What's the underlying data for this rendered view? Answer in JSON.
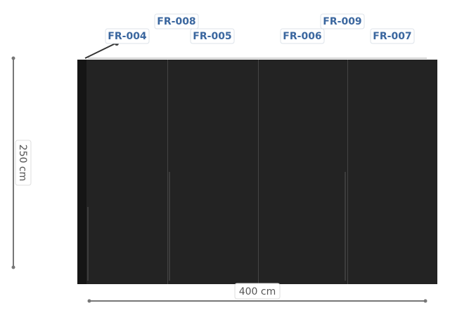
{
  "tags": [
    "FR-004",
    "FR-008",
    "FR-005",
    "FR-006",
    "FR-009",
    "FR-007"
  ],
  "dimensions": {
    "height": "250 cm",
    "width": "400 cm"
  }
}
